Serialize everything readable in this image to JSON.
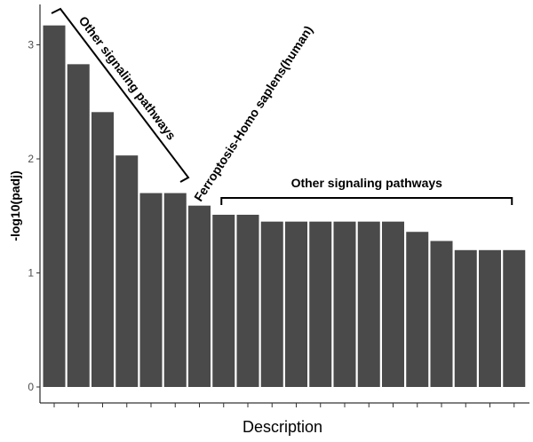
{
  "chart_data": {
    "type": "bar",
    "xlabel": "Description",
    "ylabel": "-log10(padj)",
    "ylim": [
      0,
      3.2
    ],
    "yticks": [
      0,
      1,
      2,
      3
    ],
    "grid": false,
    "bar_color": "#4a4a4a",
    "values": [
      3.17,
      2.83,
      2.41,
      2.03,
      1.7,
      1.7,
      1.59,
      1.51,
      1.51,
      1.45,
      1.45,
      1.45,
      1.45,
      1.45,
      1.45,
      1.36,
      1.28,
      1.2,
      1.2,
      1.2
    ],
    "annotations": [
      {
        "text": "Other signaling pathways",
        "from_bar": 0,
        "to_bar": 5
      },
      {
        "text": "Ferroptosis-Homo saplens(human)",
        "bar": 6
      },
      {
        "text": "Other signaling pathways",
        "from_bar": 7,
        "to_bar": 19
      }
    ]
  }
}
